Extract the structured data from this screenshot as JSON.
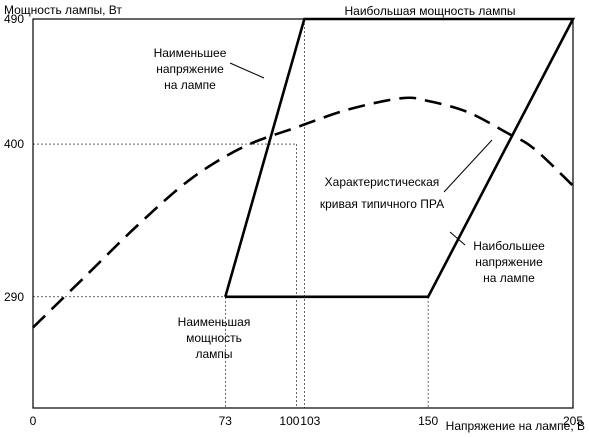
{
  "chart_data": {
    "type": "line",
    "ylabel": "Мощность лампы, Вт",
    "xlabel": "Напряжение на лампе, В",
    "x_ticks": [
      0,
      73,
      100,
      103,
      150,
      205
    ],
    "y_ticks": [
      290,
      400,
      490
    ],
    "x_tick_labels": [
      "0",
      "73",
      "100",
      "103",
      "150",
      "205"
    ],
    "y_tick_labels": [
      "290",
      "400",
      "490"
    ],
    "xlim": [
      0,
      205
    ],
    "ylim": [
      210,
      490
    ],
    "grid": "dotted guide lines at tick values",
    "boundary": {
      "name": "",
      "points": [
        [
          73,
          290
        ],
        [
          103,
          490
        ],
        [
          205,
          490
        ],
        [
          150,
          290
        ],
        [
          73,
          290
        ]
      ]
    },
    "characteristic_curve": {
      "name": "Характеристическая кривая типичного ПРА",
      "style": "dashed",
      "points": [
        [
          0,
          268
        ],
        [
          20,
          305
        ],
        [
          40,
          342
        ],
        [
          60,
          375
        ],
        [
          80,
          398
        ],
        [
          100,
          412
        ],
        [
          120,
          425
        ],
        [
          140,
          433
        ],
        [
          150,
          431
        ],
        [
          165,
          423
        ],
        [
          180,
          408
        ],
        [
          190,
          397
        ],
        [
          205,
          370
        ]
      ]
    },
    "annotations": [
      {
        "id": "max-power",
        "lines": [
          "Наибольшая мощность лампы"
        ]
      },
      {
        "id": "min-voltage",
        "lines": [
          "Наименьшее",
          "напряжение",
          "на лампе"
        ]
      },
      {
        "id": "curve",
        "lines": [
          "Характеристическая",
          "кривая типичного ПРА"
        ]
      },
      {
        "id": "max-voltage",
        "lines": [
          "Наибольшее",
          "напряжение",
          "на лампе"
        ]
      },
      {
        "id": "min-power",
        "lines": [
          "Наименьшая",
          "мощность",
          "лампы"
        ]
      }
    ]
  }
}
